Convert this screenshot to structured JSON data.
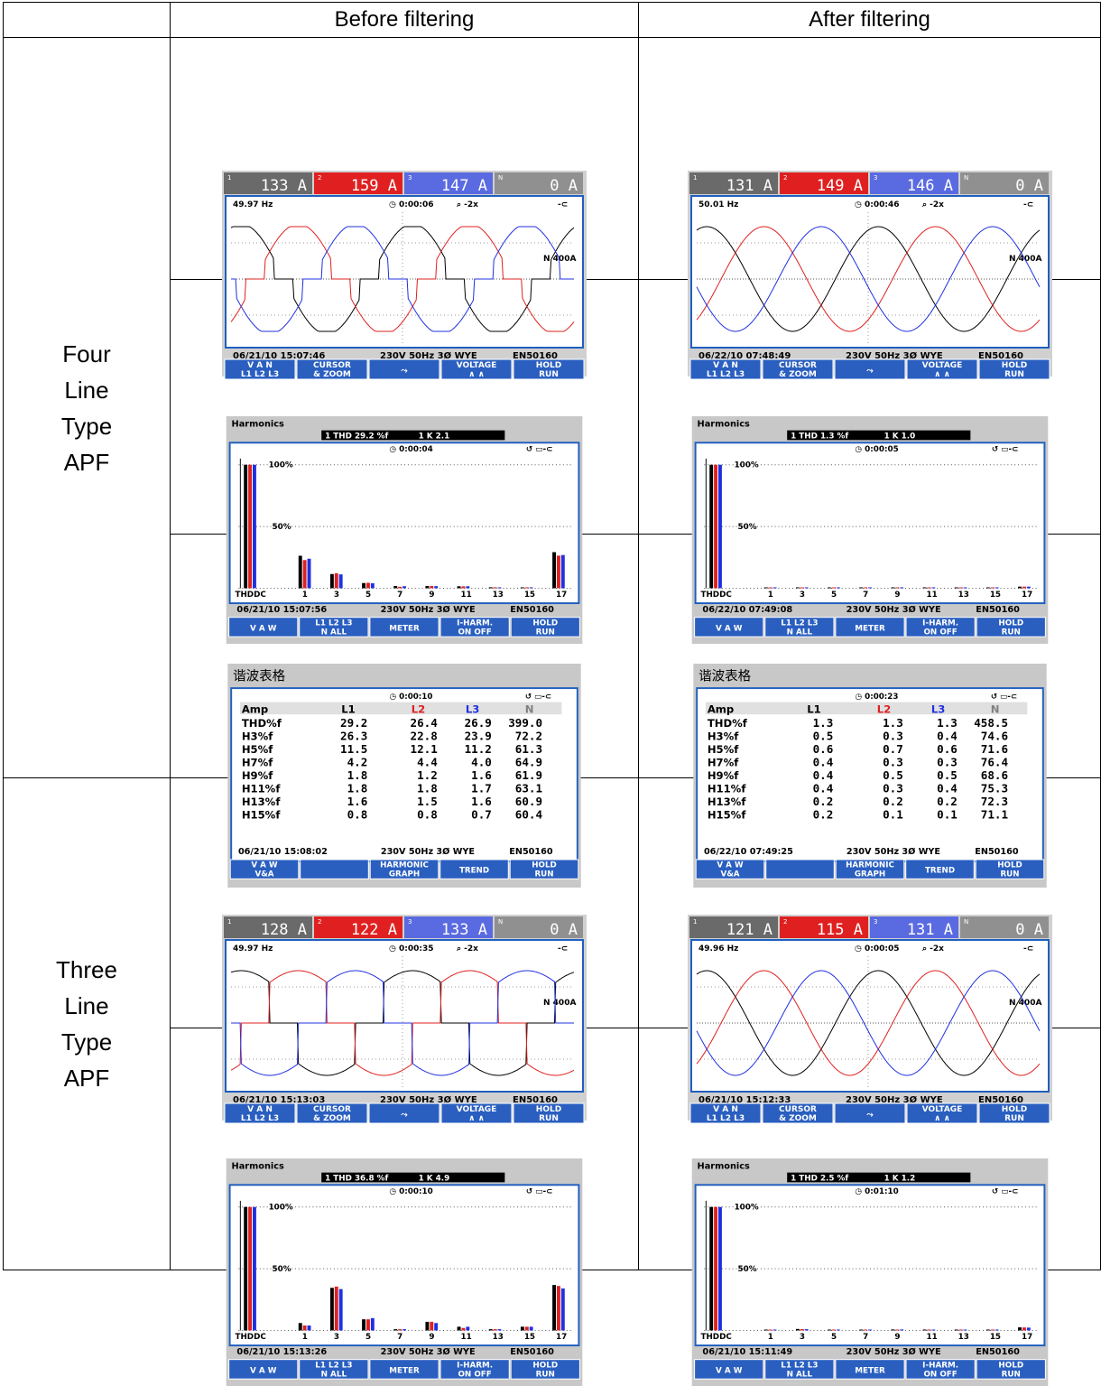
{
  "header": {
    "corner": "",
    "before": "Before filtering",
    "after": "After filtering"
  },
  "rows": {
    "four_line": [
      "Four",
      "Line",
      "Type",
      "APF"
    ],
    "three_line": [
      "Three",
      "Line",
      "Type",
      "APF"
    ]
  },
  "colors": {
    "l1": "#000000",
    "l2": "#e02020",
    "l3": "#2030e0",
    "n": "#808080",
    "frame": "#1f5fbf",
    "softkey_bg": "#2a5fc0",
    "panel_bg": "#c8c8c8"
  },
  "softkeys": {
    "scope": [
      "V A N\nL1 L2 L3",
      "CURSOR\n& ZOOM",
      "⤳",
      "VOLTAGE\n∧ ∧",
      "HOLD\nRUN"
    ],
    "harm": [
      "V A W",
      "L1 L2 L3\nN ALL",
      "METER",
      "I-HARM.\nON OFF",
      "HOLD\nRUN"
    ],
    "table": [
      "V A W\nV&A",
      "",
      "HARMONIC\nGRAPH",
      "TREND",
      "HOLD\nRUN"
    ]
  },
  "screens": {
    "s4_before_scope": {
      "type": "scope",
      "readings": [
        "133 A",
        "159 A",
        "147 A",
        "0 A"
      ],
      "freq": "49.97 Hz",
      "timer": "0:00:06",
      "zoom": "⌕ -2x",
      "scale": "N 400A",
      "footer": "06/21/10  15:07:46",
      "config": "230V  50Hz 3Ø WYE",
      "std": "EN50160",
      "wave": "distorted"
    },
    "s4_after_scope": {
      "type": "scope",
      "readings": [
        "131 A",
        "149 A",
        "146 A",
        "0 A"
      ],
      "freq": "50.01 Hz",
      "timer": "0:00:46",
      "zoom": "⌕ -2x",
      "scale": "N 400A",
      "footer": "06/22/10  07:48:49",
      "config": "230V  50Hz 3Ø WYE",
      "std": "EN50160",
      "wave": "sine"
    },
    "s4_before_harm": {
      "type": "harm",
      "title": "Harmonics",
      "thd": "1 THD 29.2 %f",
      "k": "1 K     2.1",
      "timer": "0:00:04",
      "footer": "06/21/10  15:07:56",
      "config": "230V  50Hz 3Ø WYE",
      "std": "EN50160",
      "xlabels": [
        "THDDC",
        "1",
        "3",
        "5",
        "7",
        "9",
        "11",
        "13",
        "15",
        "17"
      ],
      "bars": {
        "THD": [
          29.2,
          26.4,
          26.9
        ],
        "1": [
          100,
          100,
          100
        ],
        "3": [
          26.3,
          22.8,
          23.9
        ],
        "5": [
          11.5,
          12.1,
          11.2
        ],
        "7": [
          4.2,
          4.4,
          4.0
        ],
        "9": [
          1.8,
          1.2,
          1.6
        ],
        "11": [
          1.8,
          1.8,
          1.7
        ],
        "13": [
          1.6,
          1.5,
          1.6
        ],
        "15": [
          0.8,
          0.8,
          0.7
        ],
        "17": [
          0.5,
          0.5,
          0.5
        ]
      }
    },
    "s4_after_harm": {
      "type": "harm",
      "title": "Harmonics",
      "thd": "1 THD  1.3 %f",
      "k": "1 K     1.0",
      "timer": "0:00:05",
      "footer": "06/22/10  07:49:08",
      "config": "230V  50Hz 3Ø WYE",
      "std": "EN50160",
      "xlabels": [
        "THDDC",
        "1",
        "3",
        "5",
        "7",
        "9",
        "11",
        "13",
        "15",
        "17"
      ],
      "bars": {
        "THD": [
          1.3,
          1.3,
          1.3
        ],
        "1": [
          100,
          100,
          100
        ],
        "3": [
          0.5,
          0.3,
          0.4
        ],
        "5": [
          0.6,
          0.7,
          0.6
        ],
        "7": [
          0.4,
          0.3,
          0.3
        ],
        "9": [
          0.4,
          0.5,
          0.5
        ],
        "11": [
          0.4,
          0.3,
          0.4
        ],
        "13": [
          0.2,
          0.2,
          0.2
        ],
        "15": [
          0.2,
          0.1,
          0.1
        ],
        "17": [
          0.1,
          0.1,
          0.1
        ]
      }
    },
    "s4_before_table": {
      "type": "table",
      "title": "谐波表格",
      "timer": "0:00:10",
      "cols": [
        "Amp",
        "L1",
        "L2",
        "L3",
        "N"
      ],
      "rows": [
        [
          "THD%f",
          "29.2",
          "26.4",
          "26.9",
          "399.0"
        ],
        [
          "H3%f",
          "26.3",
          "22.8",
          "23.9",
          "72.2"
        ],
        [
          "H5%f",
          "11.5",
          "12.1",
          "11.2",
          "61.3"
        ],
        [
          "H7%f",
          "4.2",
          "4.4",
          "4.0",
          "64.9"
        ],
        [
          "H9%f",
          "1.8",
          "1.2",
          "1.6",
          "61.9"
        ],
        [
          "H11%f",
          "1.8",
          "1.8",
          "1.7",
          "63.1"
        ],
        [
          "H13%f",
          "1.6",
          "1.5",
          "1.6",
          "60.9"
        ],
        [
          "H15%f",
          "0.8",
          "0.8",
          "0.7",
          "60.4"
        ]
      ],
      "footer": "06/21/10  15:08:02",
      "config": "230V  50Hz 3Ø WYE",
      "std": "EN50160"
    },
    "s4_after_table": {
      "type": "table",
      "title": "谐波表格",
      "timer": "0:00:23",
      "cols": [
        "Amp",
        "L1",
        "L2",
        "L3",
        "N"
      ],
      "rows": [
        [
          "THD%f",
          "1.3",
          "1.3",
          "1.3",
          "458.5"
        ],
        [
          "H3%f",
          "0.5",
          "0.3",
          "0.4",
          "74.6"
        ],
        [
          "H5%f",
          "0.6",
          "0.7",
          "0.6",
          "71.6"
        ],
        [
          "H7%f",
          "0.4",
          "0.3",
          "0.3",
          "76.4"
        ],
        [
          "H9%f",
          "0.4",
          "0.5",
          "0.5",
          "68.6"
        ],
        [
          "H11%f",
          "0.4",
          "0.3",
          "0.4",
          "75.3"
        ],
        [
          "H13%f",
          "0.2",
          "0.2",
          "0.2",
          "72.3"
        ],
        [
          "H15%f",
          "0.2",
          "0.1",
          "0.1",
          "71.1"
        ]
      ],
      "footer": "06/22/10  07:49:25",
      "config": "230V  50Hz 3Ø WYE",
      "std": "EN50160"
    },
    "s3_before_scope": {
      "type": "scope",
      "readings": [
        "128 A",
        "122 A",
        "133 A",
        "0 A"
      ],
      "freq": "49.97 Hz",
      "timer": "0:00:35",
      "zoom": "⌕ -2x",
      "scale": "N 400A",
      "footer": "06/21/10  15:13:03",
      "config": "230V  50Hz 3Ø WYE",
      "std": "EN50160",
      "wave": "distorted3"
    },
    "s3_after_scope": {
      "type": "scope",
      "readings": [
        "121 A",
        "115 A",
        "131 A",
        "0 A"
      ],
      "freq": "49.96 Hz",
      "timer": "0:00:05",
      "zoom": "⌕ -2x",
      "scale": "N 400A",
      "footer": "06/21/10  15:12:33",
      "config": "230V  50Hz 3Ø WYE",
      "std": "EN50160",
      "wave": "sine"
    },
    "s3_before_harm": {
      "type": "harm",
      "title": "Harmonics",
      "thd": "1 THD 36.8 %f",
      "k": "1 K     4.9",
      "timer": "0:00:10",
      "footer": "06/21/10  15:13:26",
      "config": "230V  50Hz 3Ø WYE",
      "std": "EN50160",
      "xlabels": [
        "THDDC",
        "1",
        "3",
        "5",
        "7",
        "9",
        "11",
        "13",
        "15",
        "17"
      ],
      "bars": {
        "THD": [
          36.8,
          36.0,
          34.0
        ],
        "1": [
          100,
          100,
          100
        ],
        "3": [
          6,
          4,
          4
        ],
        "5": [
          34.5,
          35.5,
          33.5
        ],
        "7": [
          9,
          9,
          10
        ],
        "9": [
          1,
          1,
          1
        ],
        "11": [
          7,
          7,
          6
        ],
        "13": [
          3,
          2,
          3
        ],
        "15": [
          1,
          1,
          1
        ],
        "17": [
          3,
          3,
          3
        ]
      }
    },
    "s3_after_harm": {
      "type": "harm",
      "title": "Harmonics",
      "thd": "1 THD  2.5 %f",
      "k": "1 K     1.2",
      "timer": "0:01:10",
      "footer": "06/21/10  15:11:49",
      "config": "230V  50Hz 3Ø WYE",
      "std": "EN50160",
      "xlabels": [
        "THDDC",
        "1",
        "3",
        "5",
        "7",
        "9",
        "11",
        "13",
        "15",
        "17"
      ],
      "bars": {
        "THD": [
          2.5,
          2.4,
          2.3
        ],
        "1": [
          100,
          100,
          100
        ],
        "3": [
          0.5,
          0.5,
          0.5
        ],
        "5": [
          1.2,
          1.1,
          1.0
        ],
        "7": [
          0.6,
          0.5,
          0.6
        ],
        "9": [
          0.2,
          0.2,
          0.2
        ],
        "11": [
          0.8,
          0.7,
          0.8
        ],
        "13": [
          0.4,
          0.4,
          0.4
        ],
        "15": [
          0.2,
          0.2,
          0.2
        ],
        "17": [
          0.3,
          0.3,
          0.3
        ]
      }
    }
  }
}
